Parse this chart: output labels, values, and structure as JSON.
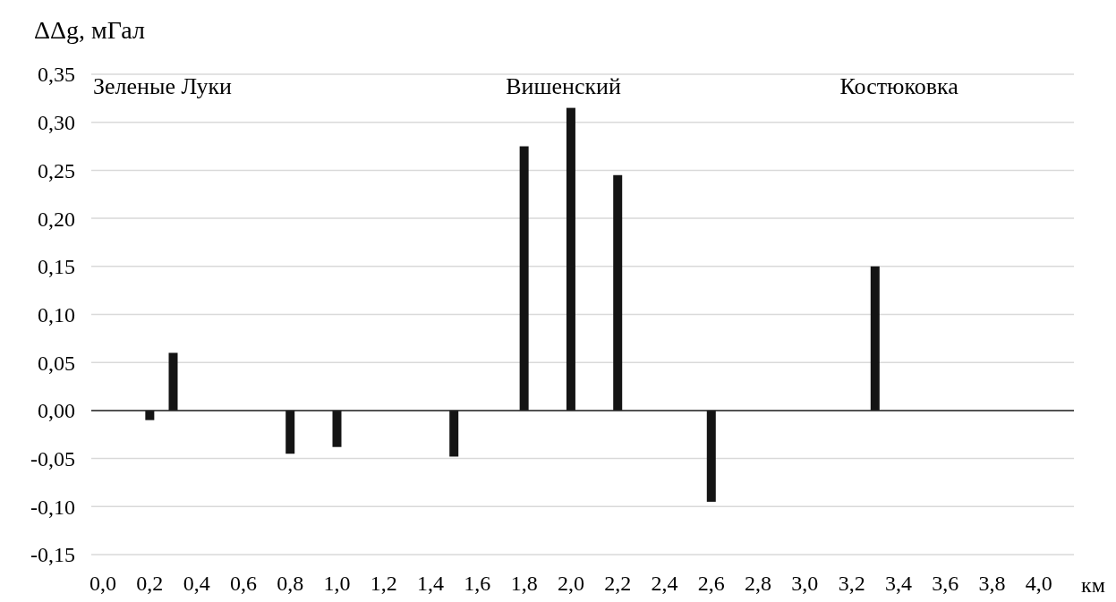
{
  "chart_data": {
    "type": "bar",
    "ylabel": "ΔΔg, мГал",
    "xlabel": "км",
    "x": [
      0.2,
      0.3,
      0.8,
      1.0,
      1.5,
      1.8,
      2.0,
      2.2,
      2.6,
      3.3
    ],
    "values": [
      -0.01,
      0.06,
      -0.045,
      -0.038,
      -0.048,
      0.275,
      0.315,
      0.245,
      -0.095,
      0.15
    ],
    "color": "#141414",
    "xlim": [
      -0.05,
      4.15
    ],
    "xticks": [
      {
        "value": 0,
        "label": "0,0"
      },
      {
        "value": 0.2,
        "label": "0,2"
      },
      {
        "value": 0.4,
        "label": "0,4"
      },
      {
        "value": 0.6,
        "label": "0,6"
      },
      {
        "value": 0.8,
        "label": "0,8"
      },
      {
        "value": 1.0,
        "label": "1,0"
      },
      {
        "value": 1.2,
        "label": "1,2"
      },
      {
        "value": 1.4,
        "label": "1,4"
      },
      {
        "value": 1.6,
        "label": "1,6"
      },
      {
        "value": 1.8,
        "label": "1,8"
      },
      {
        "value": 2.0,
        "label": "2,0"
      },
      {
        "value": 2.2,
        "label": "2,2"
      },
      {
        "value": 2.4,
        "label": "2,4"
      },
      {
        "value": 2.6,
        "label": "2,6"
      },
      {
        "value": 2.8,
        "label": "2,8"
      },
      {
        "value": 3.0,
        "label": "3,0"
      },
      {
        "value": 3.2,
        "label": "3,2"
      },
      {
        "value": 3.4,
        "label": "3,4"
      },
      {
        "value": 3.6,
        "label": "3,6"
      },
      {
        "value": 3.8,
        "label": "3,8"
      },
      {
        "value": 4.0,
        "label": "4,0"
      }
    ],
    "ylim": [
      -0.15,
      0.35
    ],
    "yticks": [
      {
        "value": -0.15,
        "label": "-0,15"
      },
      {
        "value": -0.1,
        "label": "-0,10"
      },
      {
        "value": -0.05,
        "label": "-0,05"
      },
      {
        "value": 0,
        "label": "0,00"
      },
      {
        "value": 0.05,
        "label": "0,05"
      },
      {
        "value": 0.1,
        "label": "0,10"
      },
      {
        "value": 0.15,
        "label": "0,15"
      },
      {
        "value": 0.2,
        "label": "0,20"
      },
      {
        "value": 0.25,
        "label": "0,25"
      },
      {
        "value": 0.3,
        "label": "0,30"
      },
      {
        "value": 0.35,
        "label": "0,35"
      }
    ],
    "grid": "y",
    "annotations": [
      "Зеленые Луки",
      "Вишенский",
      "Костюковка"
    ]
  }
}
